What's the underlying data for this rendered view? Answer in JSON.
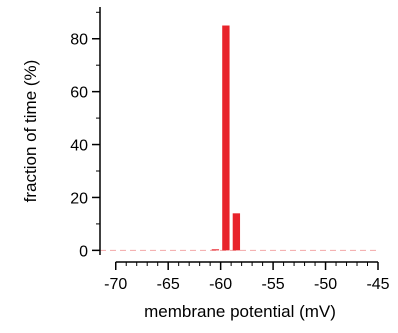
{
  "chart_data": {
    "type": "bar",
    "title": "",
    "xlabel": "membrane potential (mV)",
    "ylabel": "fraction of time (%)",
    "xlim": [
      -71.5,
      -45
    ],
    "ylim": [
      -1,
      92
    ],
    "xticks": [
      -70,
      -65,
      -60,
      -55,
      -50,
      -45
    ],
    "yticks": [
      0,
      20,
      40,
      60,
      80
    ],
    "bin_width": 1,
    "x": [
      -60.5,
      -59.5,
      -58.5
    ],
    "values": [
      0.4,
      85,
      14
    ],
    "grid": false,
    "baseline_dashed": true,
    "colors": {
      "bar": "#e8232b",
      "axis": "#000000",
      "baseline": "#f2a8a8"
    }
  }
}
